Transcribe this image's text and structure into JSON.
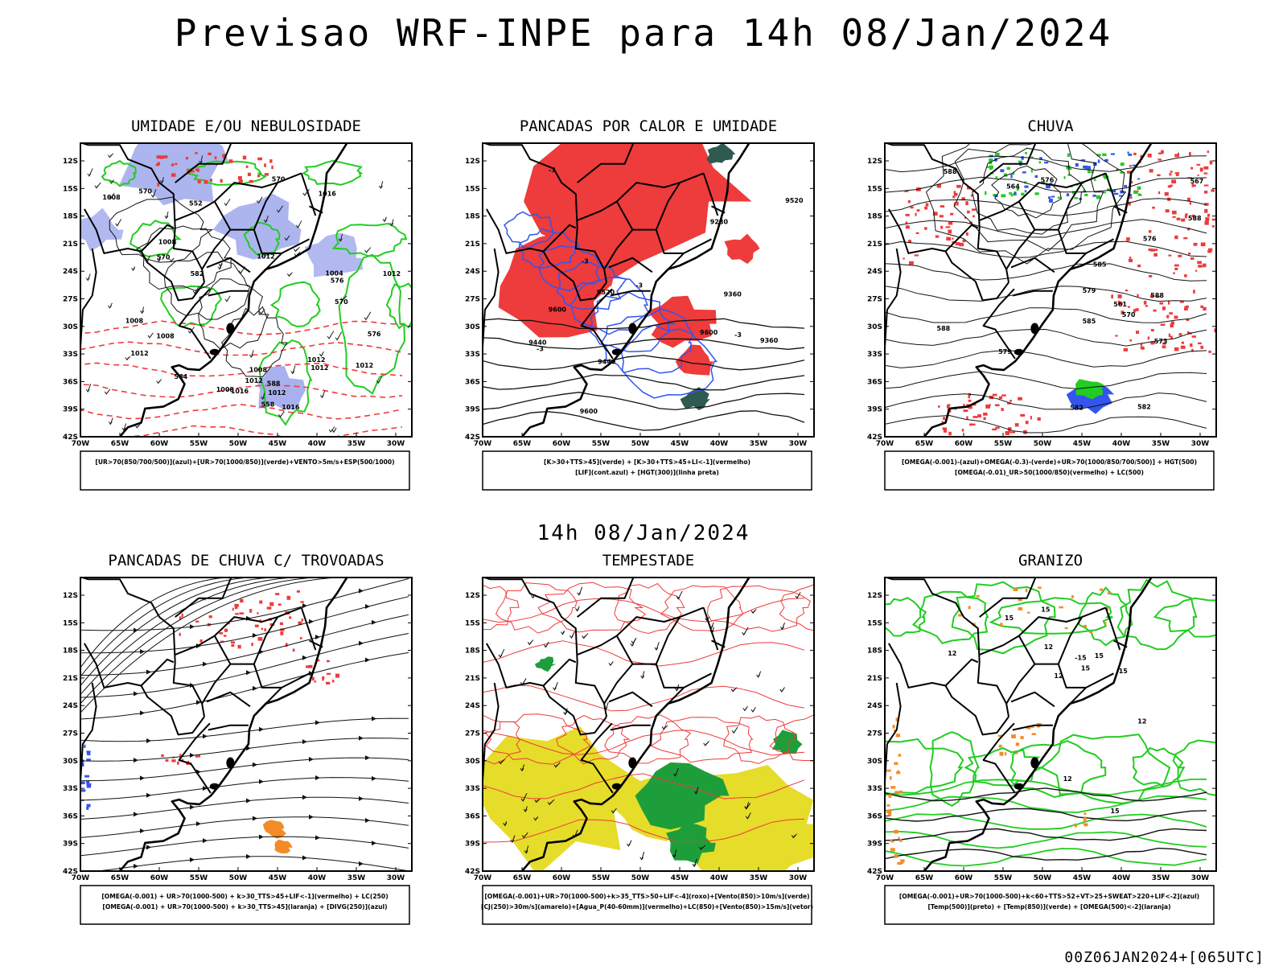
{
  "header": {
    "title": "Previsao WRF-INPE  para 14h 08/Jan/2024",
    "row_subtitle": "14h 08/Jan/2024",
    "footer_stamp": "00Z06JAN2024+[065UTC]"
  },
  "axes": {
    "lat_ticks": [
      "12S",
      "15S",
      "18S",
      "21S",
      "24S",
      "27S",
      "30S",
      "33S",
      "36S",
      "39S",
      "42S"
    ],
    "lon_ticks": [
      "70W",
      "65W",
      "60W",
      "55W",
      "50W",
      "45W",
      "40W",
      "35W",
      "30W"
    ]
  },
  "colors": {
    "red": "#ee3b3b",
    "green": "#22cc22",
    "blue": "#3355ee",
    "lavender": "#9fa8ec",
    "orange": "#f28c28",
    "yellow": "#e6dc2a",
    "darkteal": "#2f5a50"
  },
  "chart_data": [
    {
      "type": "map",
      "title": "UMIDADE E/OU NEBULOSIDADE",
      "legend": [
        "[UR>70(850/700/500)](azul)+[UR>70(1000/850)](verde)+VENTO>5m/s+ESP(500/1000)"
      ],
      "contour_labels": [
        "1008",
        "1008",
        "1012",
        "1008",
        "1012",
        "1012",
        "1012",
        "1008",
        "1004",
        "1008",
        "1008",
        "1012",
        "1016",
        "1016",
        "1016",
        "1012",
        "1012",
        "1012",
        "576",
        "576",
        "570",
        "570",
        "570",
        "582",
        "588",
        "564",
        "570",
        "558",
        "552"
      ]
    },
    {
      "type": "map",
      "title": "PANCADAS POR CALOR E UMIDADE",
      "legend": [
        "[K>30+TTS>45](verde) + [K>30+TTS>45+LI<-1](vermelho)",
        "[LIF](cont.azul) + [HGT(300)](linha preta)"
      ],
      "contour_labels": [
        "9600",
        "9600",
        "9520",
        "9440",
        "9360",
        "9280",
        "9600",
        "9520",
        "9360",
        "9440",
        "-3",
        "-3",
        "-3",
        "-3",
        "-3"
      ]
    },
    {
      "type": "map",
      "title": "CHUVA",
      "legend": [
        "[OMEGA(-0.001)-(azul)+OMEGA(-0.3)-(verde)+UR>70(1000/850/700/500)] + HGT(500)",
        "[OMEGA(-0.01)_UR>50(1000/850)(vermelho) + LC(500)"
      ],
      "contour_labels": [
        "588",
        "588",
        "588",
        "585",
        "582",
        "579",
        "576",
        "573",
        "570",
        "567",
        "564",
        "561",
        "576",
        "579",
        "582",
        "585",
        "588"
      ]
    },
    {
      "type": "map",
      "title": "PANCADAS DE CHUVA C/ TROVOADAS",
      "legend": [
        "[OMEGA(-0.001) + UR>70(1000-500) + k>30_TTS>45+LIF<-1](vermelho) + LC(250)",
        "[OMEGA(-0.001) + UR>70(1000-500) + k>30_TTS>45](laranja) + [DIVG(250)](azul)"
      ],
      "contour_labels": []
    },
    {
      "type": "map",
      "title": "TEMPESTADE",
      "legend": [
        "[OMEGA(-0.001)+UR>70(1000-500)+k>35_TTS>50+LIF<-4](roxo)+[Vento(850)>10m/s](verde)",
        "[CJ(250)>30m/s](amarelo)+[Agua_P(40-60mm)](vermelho)+LC(850)+[Vento(850)>15m/s](vetor)"
      ],
      "contour_labels": []
    },
    {
      "type": "map",
      "title": "GRANIZO",
      "legend": [
        "[OMEGA(-0.001)+UR>70(1000-500)+k<60+TTS>52+VT>25+SWEAT>220+LIF<-2](azul)",
        "[Temp(500)](preto) + [Temp(850)](verde) + [OMEGA(500)<-2](laranja)"
      ],
      "contour_labels": [
        "15",
        "15",
        "15",
        "15",
        "12",
        "12",
        "12",
        "12",
        "15",
        "15",
        "-15",
        "12"
      ]
    }
  ]
}
